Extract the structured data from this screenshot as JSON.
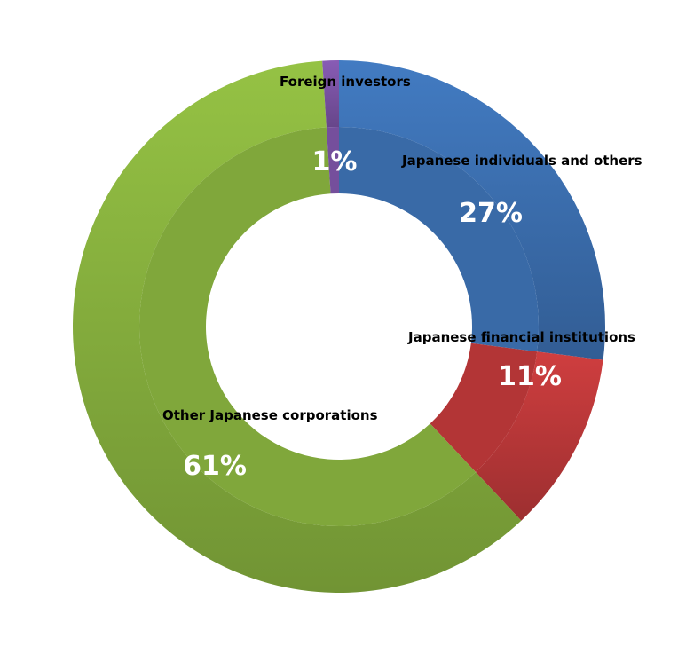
{
  "chart_data": {
    "type": "pie",
    "variant": "donut",
    "title": "",
    "legend": "none",
    "slices": [
      {
        "label": "Japanese individuals and others",
        "value": 27,
        "value_label": "27%",
        "color": "#3D72B4"
      },
      {
        "label": "Japanese financial institutions",
        "value": 11,
        "value_label": "11%",
        "color": "#C0393A"
      },
      {
        "label": "Other Japanese corporations",
        "value": 61,
        "value_label": "61%",
        "color": "#8AB43F"
      },
      {
        "label": "Foreign investors",
        "value": 1,
        "value_label": "1%",
        "color": "#7E55A8"
      }
    ]
  }
}
